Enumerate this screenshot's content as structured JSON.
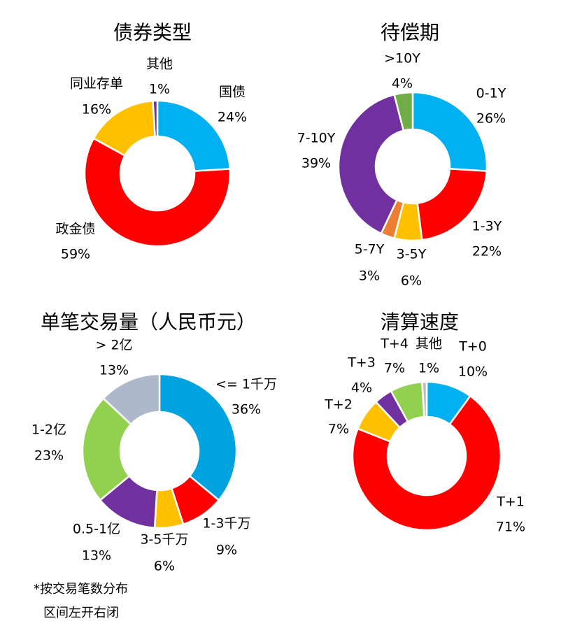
{
  "chart_data": [
    {
      "type": "pie",
      "title": "债券类型",
      "colors": [
        "#00B0F0",
        "#FF0000",
        "#FFC000",
        "#7030A0"
      ],
      "categories": [
        "国债",
        "政金债",
        "同业存单",
        "其他"
      ],
      "values": [
        24,
        59,
        16,
        1
      ],
      "value_labels": [
        "24%",
        "59%",
        "16%",
        "1%"
      ]
    },
    {
      "type": "pie",
      "title": "待偿期",
      "colors": [
        "#00B0F0",
        "#FF0000",
        "#FFC000",
        "#ED7D31",
        "#7030A0",
        "#70AD47"
      ],
      "categories": [
        "0-1Y",
        "1-3Y",
        "3-5Y",
        "5-7Y",
        "7-10Y",
        ">10Y"
      ],
      "values": [
        26,
        22,
        6,
        3,
        39,
        4
      ],
      "value_labels": [
        "26%",
        "22%",
        "6%",
        "3%",
        "39%",
        "4%"
      ]
    },
    {
      "type": "pie",
      "title": "单笔交易量（人民币元）",
      "colors": [
        "#00A2E0",
        "#FF0000",
        "#FFC000",
        "#7030A0",
        "#92D050",
        "#ADB9CA"
      ],
      "categories": [
        "<= 1千万",
        "1-3千万",
        "3-5千万",
        "0.5-1亿",
        "1-2亿",
        "> 2亿"
      ],
      "values": [
        36,
        9,
        6,
        13,
        23,
        13
      ],
      "value_labels": [
        "36%",
        "9%",
        "6%",
        "13%",
        "23%",
        "13%"
      ]
    },
    {
      "type": "pie",
      "title": "清算速度",
      "colors": [
        "#00B0F0",
        "#FF0000",
        "#FFC000",
        "#7030A0",
        "#92D050",
        "#BFBFBF"
      ],
      "categories": [
        "T+0",
        "T+1",
        "T+2",
        "T+3",
        "T+4",
        "其他"
      ],
      "values": [
        10,
        71,
        7,
        4,
        7,
        1
      ],
      "value_labels": [
        "10%",
        "71%",
        "7%",
        "4%",
        "7%",
        "1%"
      ]
    }
  ],
  "footnote": {
    "line1": "*按交易笔数分布",
    "line2": "区间左开右闭"
  }
}
